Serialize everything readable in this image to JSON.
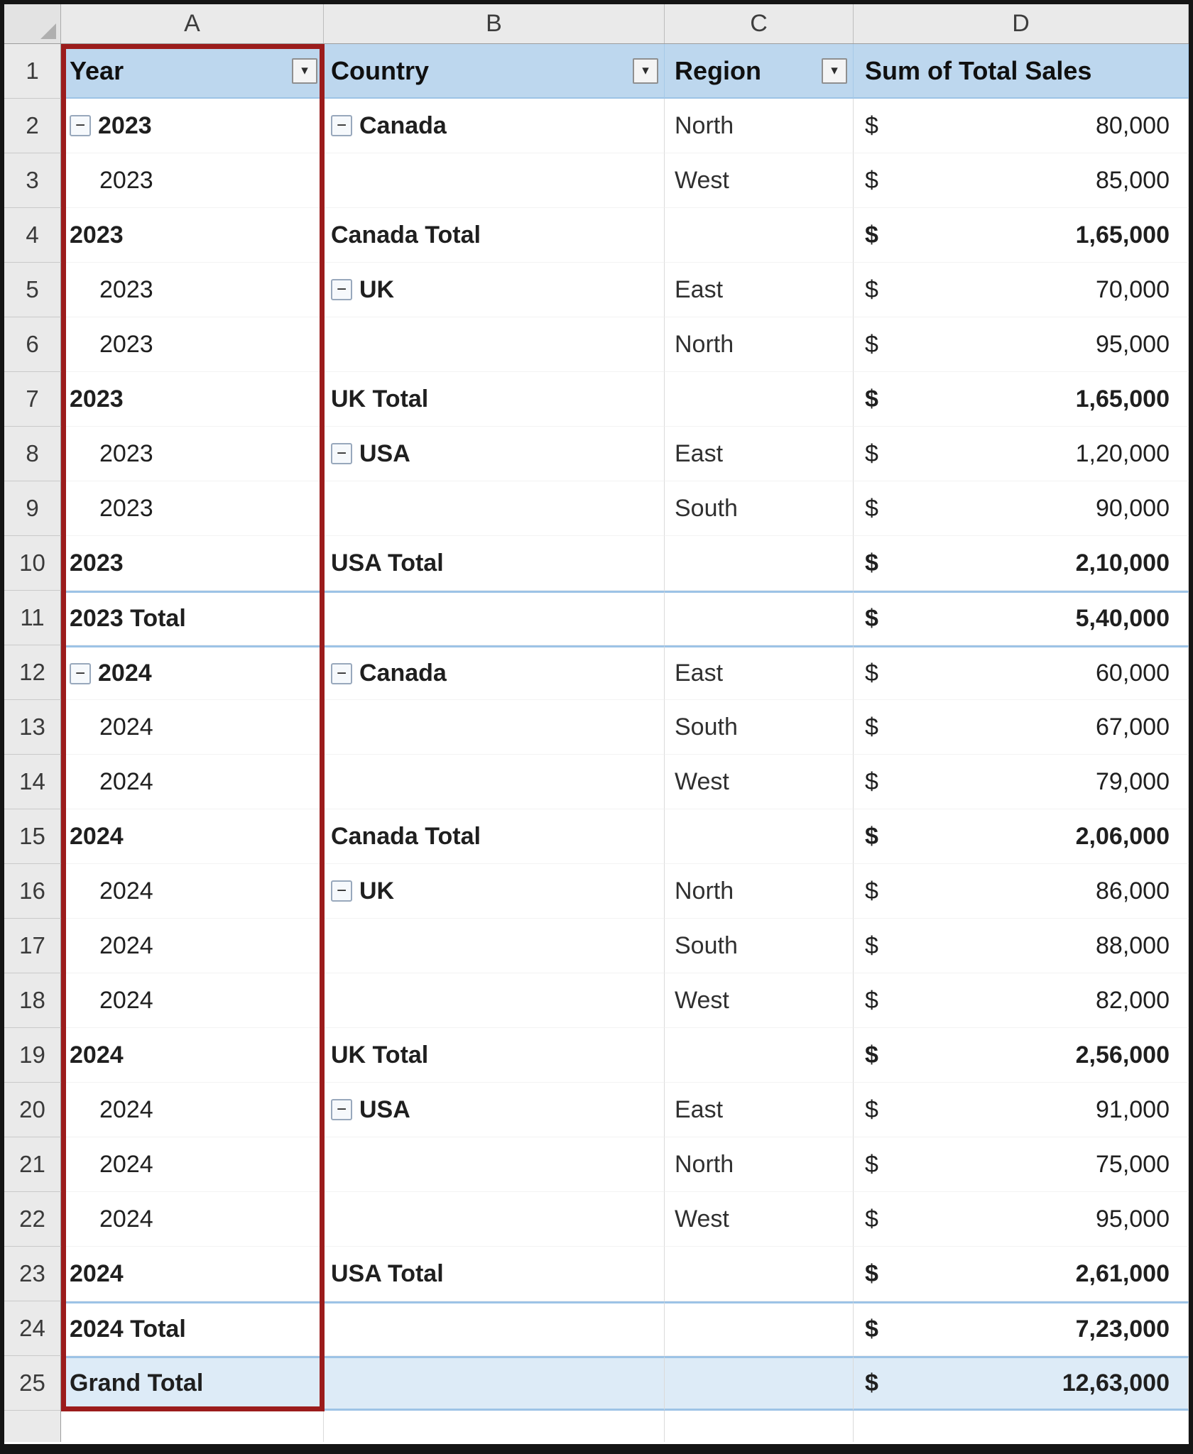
{
  "colors": {
    "accent_red": "#9B1C1C",
    "header_fill": "#BDD7EE",
    "grand_fill": "#DDEBF7",
    "separator_blue": "#9DC3E6"
  },
  "icons": {
    "collapse": "−",
    "dropdown": "▾"
  },
  "sheet": {
    "col_letters": [
      "A",
      "B",
      "C",
      "D"
    ],
    "header_row": {
      "num": "1",
      "cells": [
        {
          "label": "Year",
          "filter": true
        },
        {
          "label": "Country",
          "filter": true
        },
        {
          "label": "Region",
          "filter": true
        },
        {
          "label": "Sum of Total Sales",
          "filter": false
        }
      ]
    },
    "rows": [
      {
        "num": "2",
        "a": {
          "text": "2023",
          "style": "start",
          "collapse": true
        },
        "b": {
          "text": "Canada",
          "style": "start",
          "collapse": true
        },
        "c": "North",
        "d": {
          "cur": "$",
          "amt": "80,000",
          "bold": false
        }
      },
      {
        "num": "3",
        "a": {
          "text": "2023",
          "style": "item"
        },
        "b": null,
        "c": "West",
        "d": {
          "cur": "$",
          "amt": "85,000",
          "bold": false
        }
      },
      {
        "num": "4",
        "a": {
          "text": "2023",
          "style": "total"
        },
        "b": {
          "text": "Canada Total",
          "style": "total"
        },
        "c": "",
        "d": {
          "cur": "$",
          "amt": "1,65,000",
          "bold": true
        }
      },
      {
        "num": "5",
        "a": {
          "text": "2023",
          "style": "item"
        },
        "b": {
          "text": "UK",
          "style": "start",
          "collapse": true
        },
        "c": "East",
        "d": {
          "cur": "$",
          "amt": "70,000",
          "bold": false
        }
      },
      {
        "num": "6",
        "a": {
          "text": "2023",
          "style": "item"
        },
        "b": null,
        "c": "North",
        "d": {
          "cur": "$",
          "amt": "95,000",
          "bold": false
        }
      },
      {
        "num": "7",
        "a": {
          "text": "2023",
          "style": "total"
        },
        "b": {
          "text": "UK Total",
          "style": "total"
        },
        "c": "",
        "d": {
          "cur": "$",
          "amt": "1,65,000",
          "bold": true
        }
      },
      {
        "num": "8",
        "a": {
          "text": "2023",
          "style": "item"
        },
        "b": {
          "text": "USA",
          "style": "start",
          "collapse": true
        },
        "c": "East",
        "d": {
          "cur": "$",
          "amt": "1,20,000",
          "bold": false
        }
      },
      {
        "num": "9",
        "a": {
          "text": "2023",
          "style": "item"
        },
        "b": null,
        "c": "South",
        "d": {
          "cur": "$",
          "amt": "90,000",
          "bold": false
        }
      },
      {
        "num": "10",
        "a": {
          "text": "2023",
          "style": "total"
        },
        "b": {
          "text": "USA Total",
          "style": "total"
        },
        "c": "",
        "d": {
          "cur": "$",
          "amt": "2,10,000",
          "bold": true
        }
      },
      {
        "num": "11",
        "a": {
          "text": "2023 Total",
          "style": "total"
        },
        "b": null,
        "c": "",
        "d": {
          "cur": "$",
          "amt": "5,40,000",
          "bold": true
        },
        "top": true
      },
      {
        "num": "12",
        "a": {
          "text": "2024",
          "style": "start",
          "collapse": true
        },
        "b": {
          "text": "Canada",
          "style": "start",
          "collapse": true
        },
        "c": "East",
        "d": {
          "cur": "$",
          "amt": "60,000",
          "bold": false
        },
        "top": true
      },
      {
        "num": "13",
        "a": {
          "text": "2024",
          "style": "item"
        },
        "b": null,
        "c": "South",
        "d": {
          "cur": "$",
          "amt": "67,000",
          "bold": false
        }
      },
      {
        "num": "14",
        "a": {
          "text": "2024",
          "style": "item"
        },
        "b": null,
        "c": "West",
        "d": {
          "cur": "$",
          "amt": "79,000",
          "bold": false
        }
      },
      {
        "num": "15",
        "a": {
          "text": "2024",
          "style": "total"
        },
        "b": {
          "text": "Canada Total",
          "style": "total"
        },
        "c": "",
        "d": {
          "cur": "$",
          "amt": "2,06,000",
          "bold": true
        }
      },
      {
        "num": "16",
        "a": {
          "text": "2024",
          "style": "item"
        },
        "b": {
          "text": "UK",
          "style": "start",
          "collapse": true
        },
        "c": "North",
        "d": {
          "cur": "$",
          "amt": "86,000",
          "bold": false
        }
      },
      {
        "num": "17",
        "a": {
          "text": "2024",
          "style": "item"
        },
        "b": null,
        "c": "South",
        "d": {
          "cur": "$",
          "amt": "88,000",
          "bold": false
        }
      },
      {
        "num": "18",
        "a": {
          "text": "2024",
          "style": "item"
        },
        "b": null,
        "c": "West",
        "d": {
          "cur": "$",
          "amt": "82,000",
          "bold": false
        }
      },
      {
        "num": "19",
        "a": {
          "text": "2024",
          "style": "total"
        },
        "b": {
          "text": "UK Total",
          "style": "total"
        },
        "c": "",
        "d": {
          "cur": "$",
          "amt": "2,56,000",
          "bold": true
        }
      },
      {
        "num": "20",
        "a": {
          "text": "2024",
          "style": "item"
        },
        "b": {
          "text": "USA",
          "style": "start",
          "collapse": true
        },
        "c": "East",
        "d": {
          "cur": "$",
          "amt": "91,000",
          "bold": false
        }
      },
      {
        "num": "21",
        "a": {
          "text": "2024",
          "style": "item"
        },
        "b": null,
        "c": "North",
        "d": {
          "cur": "$",
          "amt": "75,000",
          "bold": false
        }
      },
      {
        "num": "22",
        "a": {
          "text": "2024",
          "style": "item"
        },
        "b": null,
        "c": "West",
        "d": {
          "cur": "$",
          "amt": "95,000",
          "bold": false
        }
      },
      {
        "num": "23",
        "a": {
          "text": "2024",
          "style": "total"
        },
        "b": {
          "text": "USA Total",
          "style": "total"
        },
        "c": "",
        "d": {
          "cur": "$",
          "amt": "2,61,000",
          "bold": true
        }
      },
      {
        "num": "24",
        "a": {
          "text": "2024 Total",
          "style": "total"
        },
        "b": null,
        "c": "",
        "d": {
          "cur": "$",
          "amt": "7,23,000",
          "bold": true
        },
        "top": true
      },
      {
        "num": "25",
        "a": {
          "text": "Grand Total",
          "style": "total"
        },
        "b": null,
        "c": "",
        "d": {
          "cur": "$",
          "amt": "12,63,000",
          "bold": true
        },
        "top": true,
        "fill": true
      }
    ]
  }
}
